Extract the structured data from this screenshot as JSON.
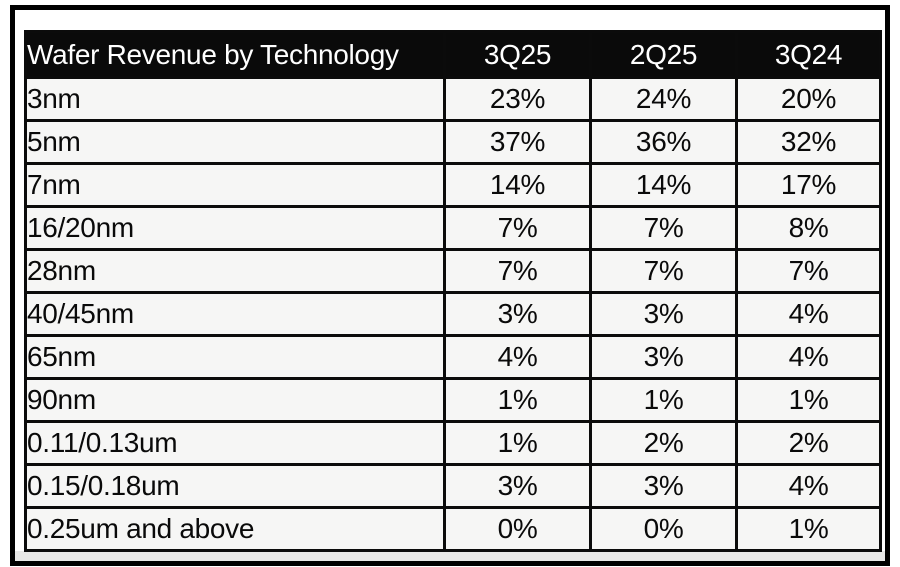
{
  "table": {
    "header": {
      "label": "Wafer Revenue by Technology",
      "columns": [
        "3Q25",
        "2Q25",
        "3Q24"
      ]
    },
    "rows": [
      {
        "label": "3nm",
        "values": [
          "23%",
          "24%",
          "20%"
        ]
      },
      {
        "label": "5nm",
        "values": [
          "37%",
          "36%",
          "32%"
        ]
      },
      {
        "label": "7nm",
        "values": [
          "14%",
          "14%",
          "17%"
        ]
      },
      {
        "label": "16/20nm",
        "values": [
          "7%",
          "7%",
          "8%"
        ]
      },
      {
        "label": "28nm",
        "values": [
          "7%",
          "7%",
          "7%"
        ]
      },
      {
        "label": "40/45nm",
        "values": [
          "3%",
          "3%",
          "4%"
        ]
      },
      {
        "label": "65nm",
        "values": [
          "4%",
          "3%",
          "4%"
        ]
      },
      {
        "label": "90nm",
        "values": [
          "1%",
          "1%",
          "1%"
        ]
      },
      {
        "label": "0.11/0.13um",
        "values": [
          "1%",
          "2%",
          "2%"
        ]
      },
      {
        "label": "0.15/0.18um",
        "values": [
          "3%",
          "3%",
          "4%"
        ]
      },
      {
        "label": "0.25um and above",
        "values": [
          "0%",
          "0%",
          "1%"
        ]
      }
    ]
  },
  "colors": {
    "header_background": "#0a0a0a",
    "header_text": "#ffffff",
    "cell_background": "#f6f6f5",
    "border": "#0b0b0b",
    "frame_border": "#000000",
    "bottom_strip": "#e8e8e7"
  },
  "chart_data": {
    "type": "table",
    "title": "Wafer Revenue by Technology",
    "columns": [
      "Wafer Revenue by Technology",
      "3Q25",
      "2Q25",
      "3Q24"
    ],
    "rows": [
      [
        "3nm",
        "23%",
        "24%",
        "20%"
      ],
      [
        "5nm",
        "37%",
        "36%",
        "32%"
      ],
      [
        "7nm",
        "14%",
        "14%",
        "17%"
      ],
      [
        "16/20nm",
        "7%",
        "7%",
        "8%"
      ],
      [
        "28nm",
        "7%",
        "7%",
        "7%"
      ],
      [
        "40/45nm",
        "3%",
        "3%",
        "4%"
      ],
      [
        "65nm",
        "4%",
        "3%",
        "4%"
      ],
      [
        "90nm",
        "1%",
        "1%",
        "1%"
      ],
      [
        "0.11/0.13um",
        "1%",
        "2%",
        "2%"
      ],
      [
        "0.15/0.18um",
        "3%",
        "3%",
        "4%"
      ],
      [
        "0.25um and above",
        "0%",
        "0%",
        "1%"
      ]
    ],
    "units": "percent of wafer revenue",
    "notes": "Black header row; light-gray body cells; black grid borders; values centered; technology labels left-aligned"
  }
}
